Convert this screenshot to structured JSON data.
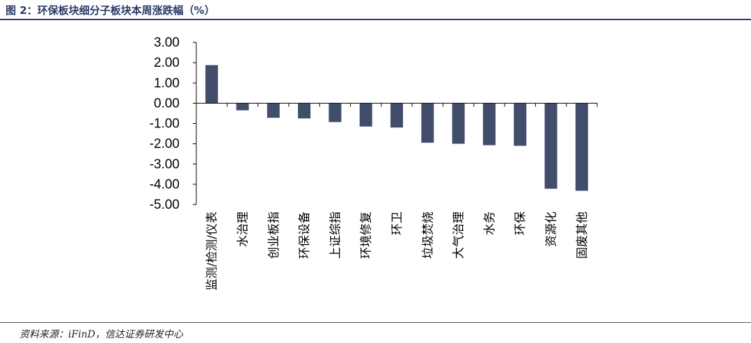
{
  "header": {
    "figure_title": "图 2：环保板块细分子板块本周涨跌幅（%）"
  },
  "footer": {
    "source": "资料来源：iFinD，信达证券研发中心"
  },
  "chart_data": {
    "type": "bar",
    "title": "",
    "xlabel": "",
    "ylabel": "",
    "ylim": [
      -5,
      3
    ],
    "yticks": [
      "3.00",
      "2.00",
      "1.00",
      "0.00",
      "-1.00",
      "-2.00",
      "-3.00",
      "-4.00",
      "-5.00"
    ],
    "grid": false,
    "bar_color": "#424c6b",
    "categories": [
      "监测/检测/仪表",
      "水治理",
      "创业板指",
      "环保设备",
      "上证综指",
      "环境修复",
      "环卫",
      "垃圾焚烧",
      "大气治理",
      "水务",
      "环保",
      "资源化",
      "固废其他"
    ],
    "values": [
      1.88,
      -0.35,
      -0.72,
      -0.75,
      -0.93,
      -1.15,
      -1.2,
      -1.95,
      -2.0,
      -2.07,
      -2.1,
      -4.22,
      -4.32
    ]
  }
}
